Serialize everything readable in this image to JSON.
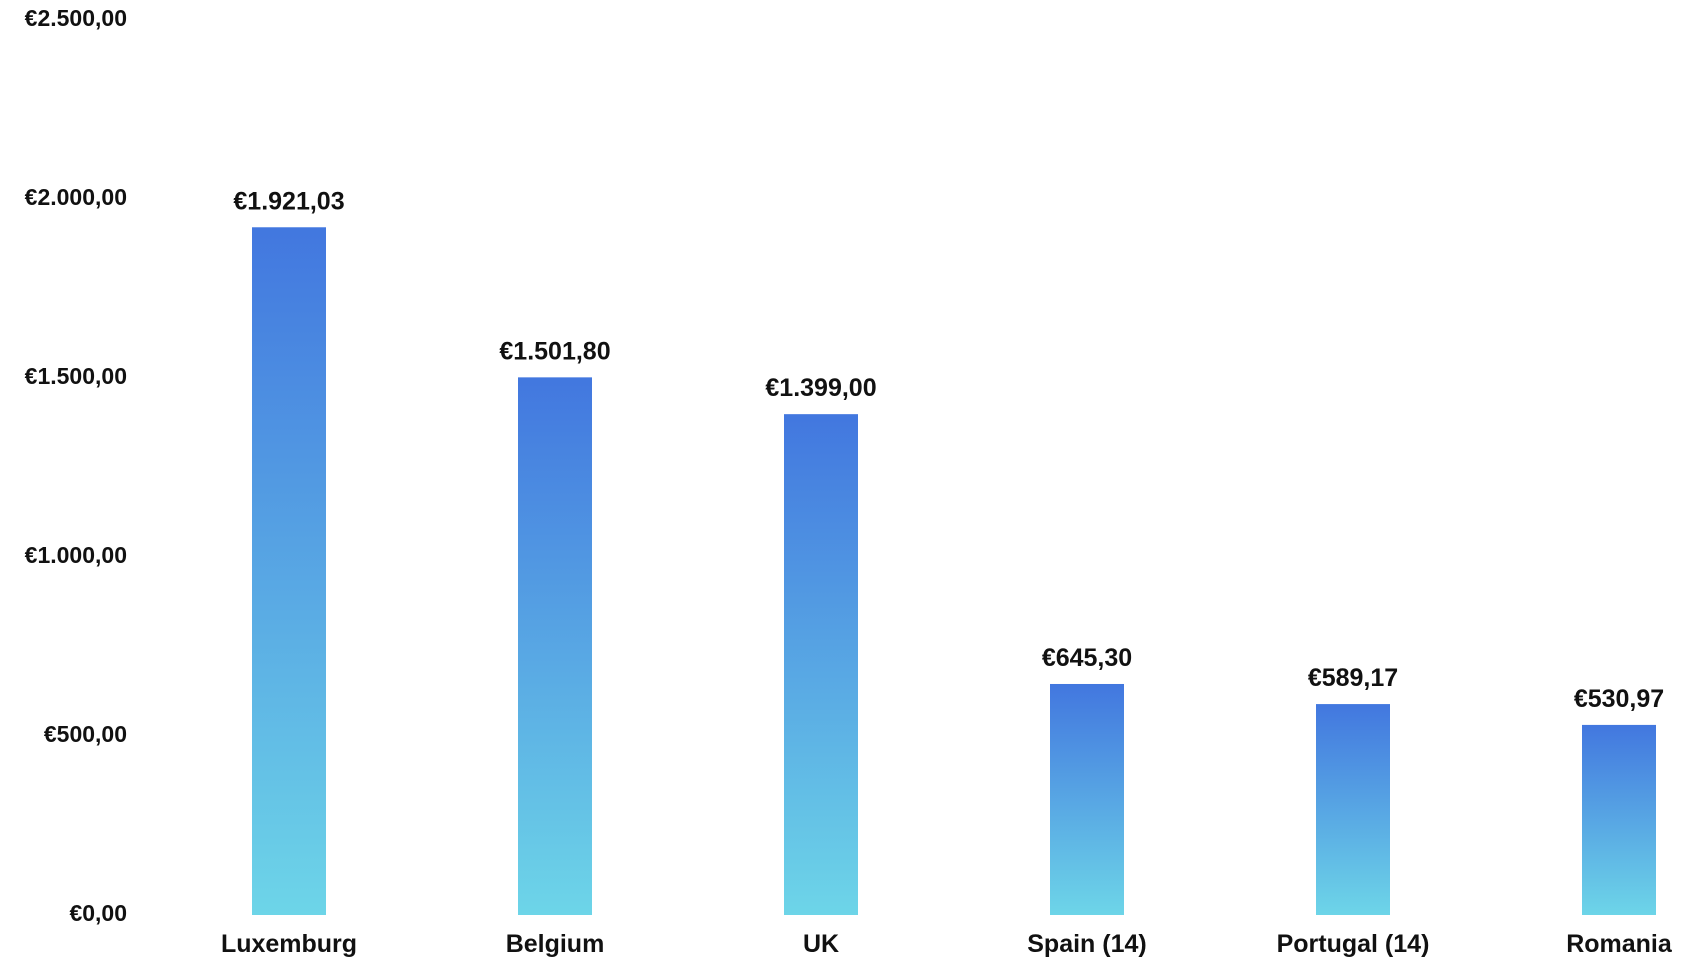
{
  "chart_data": {
    "type": "bar",
    "title": "",
    "xlabel": "",
    "ylabel": "",
    "categories": [
      "Luxemburg",
      "Belgium",
      "UK",
      "Spain (14)",
      "Portugal (14)",
      "Romania"
    ],
    "values": [
      1921.03,
      1501.8,
      1399.0,
      645.3,
      589.17,
      530.97
    ],
    "data_labels": [
      "€1.921,03",
      "€1.501,80",
      "€1.399,00",
      "€645,30",
      "€589,17",
      "€530,97"
    ],
    "ylim": [
      0,
      2500
    ],
    "yticks": [
      0,
      500,
      1000,
      1500,
      2000,
      2500
    ],
    "ytick_labels": [
      "€0,00",
      "€500,00",
      "€1.000,00",
      "€1.500,00",
      "€2.000,00",
      "€2.500,00"
    ],
    "grid": false,
    "legend": "none",
    "colors": {
      "bar_top": "#4277DF",
      "bar_bottom": "#6DD5E8"
    }
  }
}
